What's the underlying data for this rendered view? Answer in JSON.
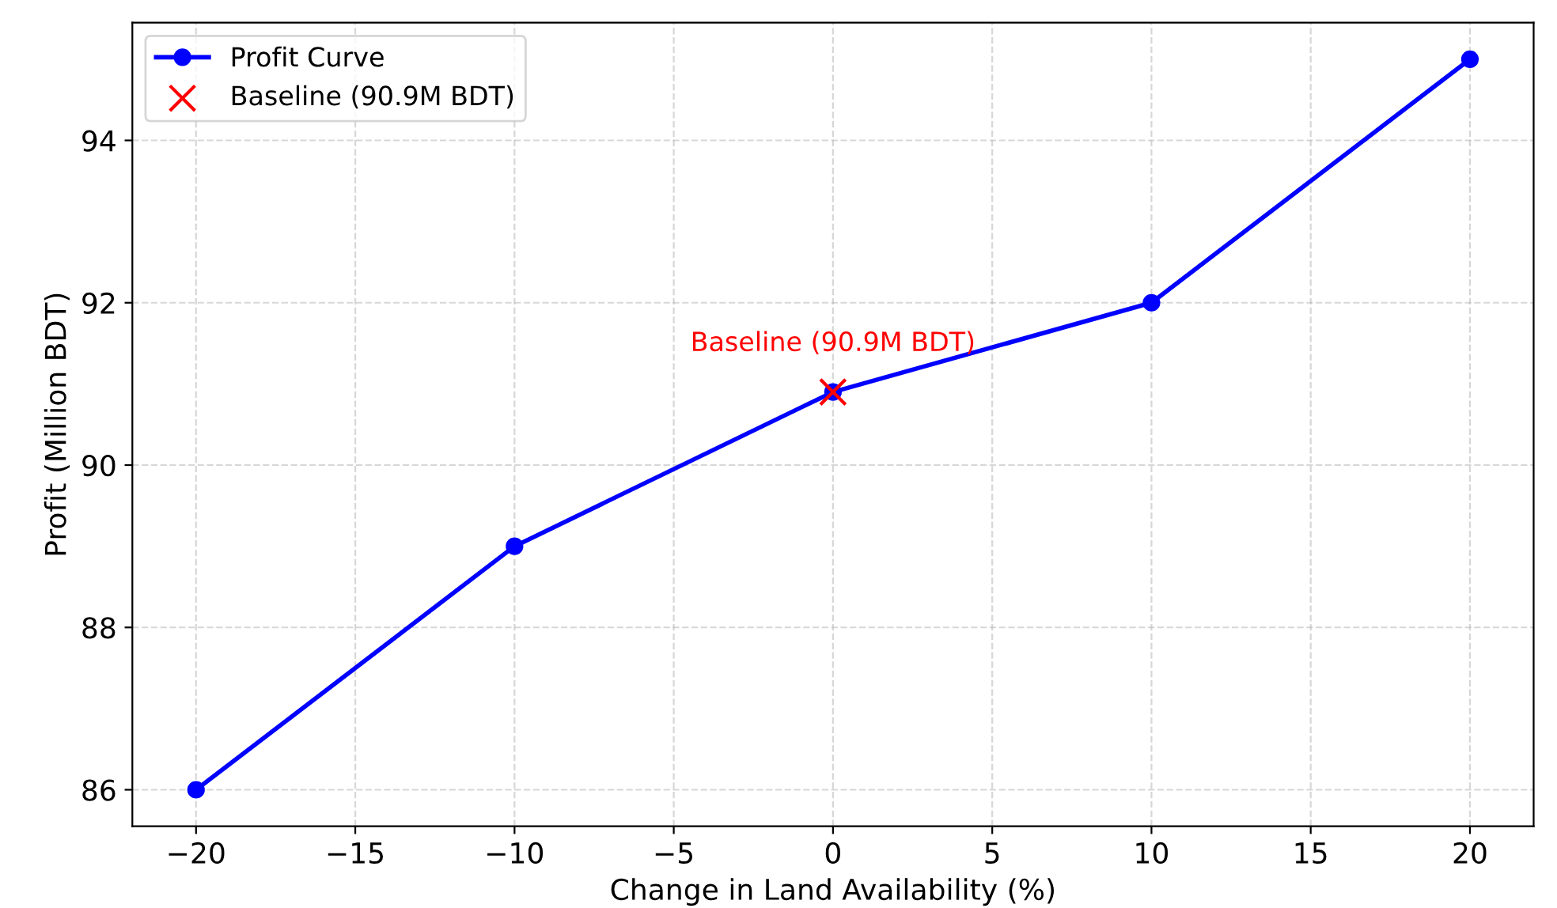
{
  "chart_data": {
    "type": "line",
    "xlabel": "Change in Land Availability (%)",
    "ylabel": "Profit (Million BDT)",
    "x": [
      -20,
      -10,
      0,
      10,
      20
    ],
    "series": [
      {
        "name": "Profit Curve",
        "color": "#0000ff",
        "values": [
          86,
          89,
          90.9,
          92,
          95
        ],
        "marker": "circle"
      },
      {
        "name": "Baseline (90.9M BDT)",
        "type": "scatter",
        "color": "#ff0000",
        "x": [
          0
        ],
        "values": [
          90.9
        ],
        "marker": "cross"
      }
    ],
    "annotations": [
      {
        "text": "Baseline (90.9M BDT)",
        "x": 0,
        "y": 90.9
      }
    ],
    "xlim": [
      -22,
      22
    ],
    "ylim": [
      85.55,
      95.45
    ],
    "xticks": [
      -20,
      -15,
      -10,
      -5,
      0,
      5,
      10,
      15,
      20
    ],
    "yticks": [
      86,
      88,
      90,
      92,
      94
    ],
    "grid": true,
    "legend": "top left",
    "line_style": "solid"
  }
}
